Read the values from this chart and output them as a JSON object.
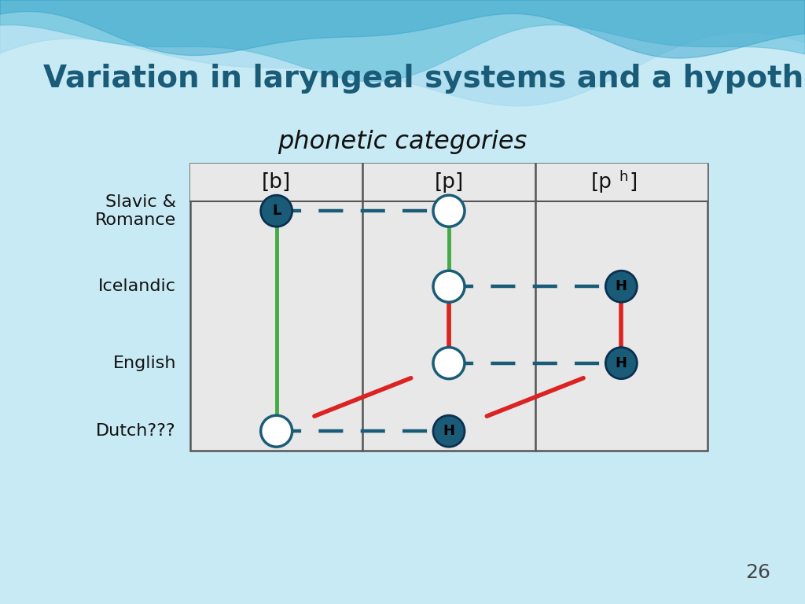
{
  "title": "Variation in laryngeal systems and a hypothesis…",
  "subtitle": "phonetic categories",
  "background_color": "#c8eaf5",
  "table_bg": "#e8e8e8",
  "title_color": "#1a5c78",
  "subtitle_color": "#111111",
  "row_label_color": "#111111",
  "col_label_color": "#111111",
  "page_number": "26",
  "nodes": [
    {
      "row": 0,
      "col": 0,
      "filled": true,
      "label": "L"
    },
    {
      "row": 0,
      "col": 1,
      "filled": false,
      "label": ""
    },
    {
      "row": 1,
      "col": 1,
      "filled": false,
      "label": ""
    },
    {
      "row": 1,
      "col": 2,
      "filled": true,
      "label": "H"
    },
    {
      "row": 2,
      "col": 1,
      "filled": false,
      "label": ""
    },
    {
      "row": 2,
      "col": 2,
      "filled": true,
      "label": "H"
    },
    {
      "row": 3,
      "col": 0,
      "filled": false,
      "label": ""
    },
    {
      "row": 3,
      "col": 1,
      "filled": true,
      "label": "H"
    }
  ],
  "dashed_lines": [
    {
      "r1": 0,
      "c1": 0,
      "r2": 0,
      "c2": 1
    },
    {
      "r1": 1,
      "c1": 1,
      "r2": 1,
      "c2": 2
    },
    {
      "r1": 2,
      "c1": 1,
      "r2": 2,
      "c2": 2
    },
    {
      "r1": 3,
      "c1": 0,
      "r2": 3,
      "c2": 1
    }
  ],
  "green_lines": [
    {
      "r1": 0,
      "c1": 0,
      "r2": 3,
      "c2": 0
    },
    {
      "r1": 0,
      "c1": 1,
      "r2": 2,
      "c2": 1
    }
  ],
  "red_lines": [
    {
      "r1": 2,
      "c1": 1,
      "r2": 1,
      "c2": 1
    },
    {
      "r1": 3,
      "c1": 0,
      "r2": 2,
      "c2": 1
    },
    {
      "r1": 3,
      "c1": 1,
      "r2": 2,
      "c2": 2
    },
    {
      "r1": 2,
      "c1": 2,
      "r2": 1,
      "c2": 2
    }
  ],
  "node_color": "#1a5c78",
  "dashed_color": "#1a5c78",
  "green_color": "#44aa44",
  "red_color": "#dd2222",
  "row_labels": [
    "Slavic &\nRomance",
    "Icelandic",
    "English",
    "Dutch???"
  ]
}
